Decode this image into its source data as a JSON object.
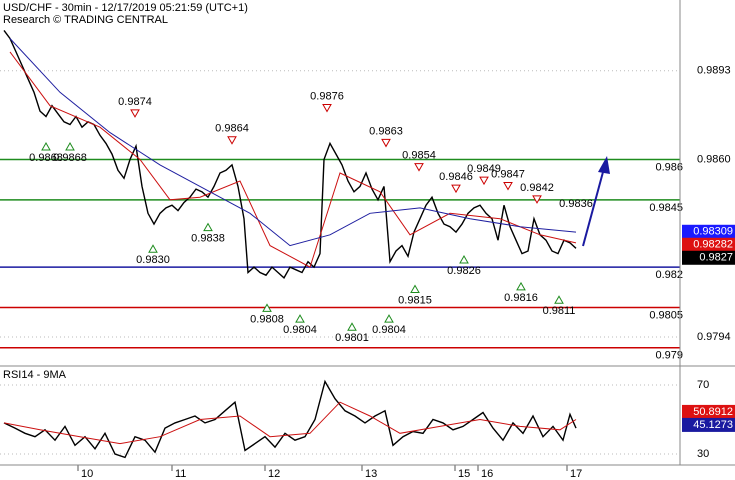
{
  "chart_data": [
    {
      "type": "line",
      "title": "USD/CHF - 30min - 12/17/2019 05:21:59 (UTC+1)",
      "subtitle": "Research © TRADING CENTRAL",
      "xlim": [
        0,
        340
      ],
      "ylim": [
        0.97836,
        0.99193
      ],
      "yticks": [
        0.9893,
        {
          "value": 0.986,
          "label": "0.9860"
        },
        0.9794
      ],
      "grid": true,
      "series": [
        {
          "color": "#000000",
          "x": [
            2,
            5,
            8,
            11,
            14,
            17,
            20,
            23,
            26,
            29,
            32,
            35,
            38,
            41,
            44,
            47,
            50,
            53,
            56,
            59,
            62,
            65,
            68,
            71,
            74,
            77,
            80,
            83,
            86,
            89,
            92,
            95,
            98,
            101,
            104,
            107,
            110,
            113,
            116,
            119,
            122,
            124,
            127,
            130,
            133,
            136,
            139,
            142,
            145,
            148,
            151,
            154,
            157,
            160,
            162,
            165,
            168,
            171,
            174,
            177,
            180,
            183,
            186,
            189,
            192,
            195,
            198,
            201,
            204,
            207,
            210,
            213,
            216,
            219,
            222,
            225,
            228,
            231,
            234,
            237,
            240,
            243,
            246,
            249,
            252,
            255,
            258,
            261,
            264,
            267,
            270,
            273,
            276,
            279,
            282,
            285,
            288
          ],
          "values": [
            0.9908,
            0.9905,
            0.99,
            0.9895,
            0.989,
            0.9885,
            0.9878,
            0.9876,
            0.988,
            0.9877,
            0.9874,
            0.9873,
            0.9876,
            0.9872,
            0.9874,
            0.9873,
            0.9869,
            0.9866,
            0.9862,
            0.9856,
            0.9853,
            0.986,
            0.9865,
            0.985,
            0.984,
            0.9836,
            0.984,
            0.9842,
            0.9843,
            0.9841,
            0.9844,
            0.9846,
            0.9849,
            0.9848,
            0.9846,
            0.985,
            0.9855,
            0.9856,
            0.9858,
            0.985,
            0.9838,
            0.9818,
            0.982,
            0.9818,
            0.9817,
            0.982,
            0.9818,
            0.9816,
            0.982,
            0.9819,
            0.9818,
            0.9822,
            0.982,
            0.9825,
            0.986,
            0.9866,
            0.9862,
            0.9858,
            0.9852,
            0.9848,
            0.985,
            0.9855,
            0.9849,
            0.9845,
            0.985,
            0.9822,
            0.9826,
            0.9828,
            0.9824,
            0.9833,
            0.9838,
            0.9843,
            0.9846,
            0.984,
            0.9836,
            0.9835,
            0.9833,
            0.9836,
            0.984,
            0.9842,
            0.9843,
            0.984,
            0.9838,
            0.983,
            0.9843,
            0.9835,
            0.983,
            0.9825,
            0.9826,
            0.9838,
            0.9832,
            0.983,
            0.9826,
            0.9825,
            0.983,
            0.9829,
            0.9827
          ]
        },
        {
          "color": "#cc1111",
          "x": [
            5,
            25,
            50,
            70,
            85,
            100,
            120,
            135,
            155,
            170,
            190,
            205,
            225,
            250,
            270,
            288
          ],
          "values": [
            0.99,
            0.988,
            0.9872,
            0.986,
            0.9845,
            0.9846,
            0.9852,
            0.9828,
            0.982,
            0.9855,
            0.9848,
            0.9832,
            0.984,
            0.9838,
            0.9832,
            0.9829
          ]
        },
        {
          "color": "#1f1fa0",
          "x": [
            5,
            30,
            55,
            80,
            105,
            125,
            145,
            165,
            185,
            210,
            235,
            260,
            288
          ],
          "values": [
            0.9905,
            0.9885,
            0.987,
            0.9858,
            0.9848,
            0.984,
            0.9828,
            0.9832,
            0.984,
            0.9842,
            0.9838,
            0.9835,
            0.9833
          ]
        }
      ],
      "levels": [
        {
          "value": 0.986,
          "color": "#1e8c1e"
        },
        {
          "value": 0.9845,
          "color": "#1e8c1e"
        },
        {
          "value": 0.982,
          "color": "#1a1aa0"
        },
        {
          "value": 0.9805,
          "color": "#cc0000"
        },
        {
          "value": 0.979,
          "color": "#cc0000"
        }
      ],
      "price_tags": [
        {
          "value": 0.98309,
          "color": "#1a1aff"
        },
        {
          "value": 0.98282,
          "color": "#dd1111"
        },
        {
          "value": 0.9827,
          "color": "#000000"
        }
      ],
      "annotations": [
        {
          "x": 23,
          "value": 0.9868,
          "direction": "trough"
        },
        {
          "x": 35,
          "value": 0.9868,
          "direction": "trough"
        },
        {
          "x": 67.5,
          "value": 0.9874,
          "direction": "peak"
        },
        {
          "x": 76.5,
          "value": 0.983,
          "label": "0.9830",
          "direction": "trough"
        },
        {
          "x": 104,
          "value": 0.9838,
          "direction": "trough"
        },
        {
          "x": 116,
          "value": 0.9864,
          "direction": "peak"
        },
        {
          "x": 133.5,
          "value": 0.9808,
          "direction": "trough"
        },
        {
          "x": 150,
          "value": 0.9804,
          "direction": "trough"
        },
        {
          "x": 163.5,
          "value": 0.9876,
          "direction": "peak"
        },
        {
          "x": 176,
          "value": 0.9801,
          "direction": "trough"
        },
        {
          "x": 193,
          "value": 0.9863,
          "direction": "peak"
        },
        {
          "x": 194.5,
          "value": 0.9804,
          "direction": "trough"
        },
        {
          "x": 207.5,
          "value": 0.9815,
          "direction": "trough"
        },
        {
          "x": 209.5,
          "value": 0.9854,
          "direction": "peak"
        },
        {
          "x": 228,
          "value": 0.9846,
          "direction": "peak"
        },
        {
          "x": 232,
          "value": 0.9826,
          "direction": "trough"
        },
        {
          "x": 242,
          "value": 0.9849,
          "direction": "peak"
        },
        {
          "x": 254,
          "value": 0.9847,
          "direction": "peak"
        },
        {
          "x": 260.5,
          "value": 0.9816,
          "direction": "trough"
        },
        {
          "x": 268.5,
          "value": 0.9842,
          "direction": "peak"
        },
        {
          "x": 279.5,
          "value": 0.9811,
          "direction": "trough"
        },
        {
          "x": 288,
          "value": 0.9836,
          "direction": "peak",
          "marker": false
        }
      ]
    },
    {
      "type": "line",
      "title": "RSI14 - 9MA",
      "xlim": [
        0,
        340
      ],
      "ylim": [
        23.6,
        80.4
      ],
      "yticks": [
        70,
        30
      ],
      "xticks": [
        {
          "value": 39,
          "label": "10"
        },
        {
          "value": 86,
          "label": "11"
        },
        {
          "value": 132.5,
          "label": "12"
        },
        {
          "value": 181,
          "label": "13"
        },
        {
          "value": 227.5,
          "label": "15"
        },
        {
          "value": 239,
          "label": "16"
        },
        {
          "value": 283.5,
          "label": "17"
        }
      ],
      "grid": true,
      "series": [
        {
          "color": "#000000",
          "x": [
            2,
            7.5,
            12.5,
            17.5,
            22.5,
            27.5,
            32.5,
            37.5,
            42.5,
            47.5,
            52.5,
            57.5,
            62.5,
            67.5,
            72.5,
            77.5,
            82.5,
            87.5,
            92.5,
            97.5,
            102.5,
            107.5,
            112.5,
            117.5,
            122.5,
            127.5,
            132.5,
            137.5,
            142.5,
            147.5,
            152.5,
            157.5,
            162.5,
            167.5,
            172.5,
            177.5,
            182.5,
            187.5,
            192.5,
            196.5,
            201.5,
            206.5,
            211.5,
            216.5,
            221.5,
            226.5,
            231.5,
            236.5,
            241.5,
            246.5,
            251.5,
            256.5,
            261.5,
            266.5,
            271.5,
            276.5,
            281.5,
            285,
            288
          ],
          "values": [
            48,
            45,
            42,
            40,
            44,
            38,
            46,
            35,
            40,
            33,
            42,
            30,
            28,
            40,
            38,
            31,
            45,
            48,
            50,
            52,
            48,
            50,
            55,
            60,
            32,
            36,
            40,
            34,
            42,
            38,
            40,
            50,
            72,
            62,
            55,
            52,
            48,
            52,
            55,
            35,
            40,
            43,
            42,
            50,
            48,
            44,
            46,
            50,
            54,
            45,
            38,
            48,
            42,
            52,
            40,
            46,
            38,
            53,
            45
          ]
        },
        {
          "color": "#cc1111",
          "x": [
            2,
            20,
            40,
            60,
            80,
            100,
            120,
            135,
            155,
            170,
            185,
            200,
            220,
            240,
            260,
            280,
            288
          ],
          "values": [
            48,
            44,
            40,
            36,
            40,
            50,
            52,
            40,
            42,
            60,
            52,
            42,
            46,
            50,
            46,
            44,
            50
          ]
        }
      ],
      "price_tags": [
        {
          "value": 50.8912,
          "color": "#dd1111"
        },
        {
          "value": 45.1273,
          "color": "#1a1aa0"
        }
      ]
    }
  ]
}
